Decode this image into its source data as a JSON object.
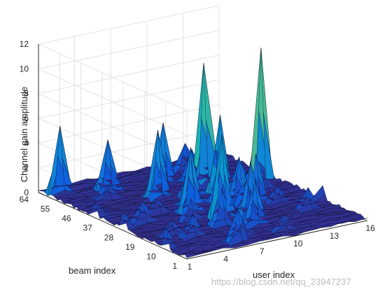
{
  "chart_data": {
    "type": "surface",
    "title": "",
    "xlabel": "user index",
    "ylabel": "beam index",
    "zlabel": "Channel gain amplitude",
    "x_ticks": [
      "1",
      "4",
      "7",
      "10",
      "13",
      "16"
    ],
    "y_ticks": [
      "1",
      "10",
      "19",
      "28",
      "37",
      "46",
      "55",
      "64"
    ],
    "z_ticks": [
      "0",
      "2",
      "4",
      "6",
      "8",
      "10",
      "12"
    ],
    "xlim": [
      1,
      16
    ],
    "ylim": [
      1,
      64
    ],
    "zlim": [
      0,
      12
    ],
    "grid": true,
    "colormap": "parula",
    "peaks": [
      {
        "user": 1,
        "beam": 10,
        "gain": 1.8
      },
      {
        "user": 1,
        "beam": 28,
        "gain": 1.5
      },
      {
        "user": 1,
        "beam": 40,
        "gain": 1.2
      },
      {
        "user": 2,
        "beam": 60,
        "gain": 5.5
      },
      {
        "user": 3,
        "beam": 30,
        "gain": 1.8
      },
      {
        "user": 3,
        "beam": 18,
        "gain": 1.3
      },
      {
        "user": 4,
        "beam": 14,
        "gain": 1.9
      },
      {
        "user": 4,
        "beam": 50,
        "gain": 1.2
      },
      {
        "user": 5,
        "beam": 55,
        "gain": 4.2
      },
      {
        "user": 5,
        "beam": 34,
        "gain": 1.2
      },
      {
        "user": 6,
        "beam": 5,
        "gain": 2.7
      },
      {
        "user": 6,
        "beam": 25,
        "gain": 1.8
      },
      {
        "user": 7,
        "beam": 17,
        "gain": 3.1
      },
      {
        "user": 7,
        "beam": 30,
        "gain": 5.3
      },
      {
        "user": 7,
        "beam": 44,
        "gain": 5.5
      },
      {
        "user": 7,
        "beam": 8,
        "gain": 1.2
      },
      {
        "user": 8,
        "beam": 35,
        "gain": 3.6
      },
      {
        "user": 8,
        "beam": 22,
        "gain": 6.8
      },
      {
        "user": 9,
        "beam": 13,
        "gain": 3.7
      },
      {
        "user": 9,
        "beam": 52,
        "gain": 5.0
      },
      {
        "user": 9,
        "beam": 40,
        "gain": 3.4
      },
      {
        "user": 10,
        "beam": 20,
        "gain": 4.4
      },
      {
        "user": 10,
        "beam": 33,
        "gain": 2.8
      },
      {
        "user": 10,
        "beam": 6,
        "gain": 1.3
      },
      {
        "user": 11,
        "beam": 45,
        "gain": 10.0
      },
      {
        "user": 11,
        "beam": 38,
        "gain": 6.4
      },
      {
        "user": 11,
        "beam": 50,
        "gain": 2.6
      },
      {
        "user": 11,
        "beam": 30,
        "gain": 3.7
      },
      {
        "user": 11,
        "beam": 27,
        "gain": 2.6
      },
      {
        "user": 12,
        "beam": 28,
        "gain": 3.9
      },
      {
        "user": 12,
        "beam": 45,
        "gain": 2.8
      },
      {
        "user": 12,
        "beam": 58,
        "gain": 2.2
      },
      {
        "user": 13,
        "beam": 24,
        "gain": 1.5
      },
      {
        "user": 13,
        "beam": 40,
        "gain": 2.2
      },
      {
        "user": 14,
        "beam": 36,
        "gain": 11.4
      },
      {
        "user": 14,
        "beam": 16,
        "gain": 1.8
      },
      {
        "user": 15,
        "beam": 42,
        "gain": 1.5
      },
      {
        "user": 16,
        "beam": 20,
        "gain": 1.2
      }
    ]
  },
  "watermark": "https://blog.csdn.net/qq_23947237"
}
